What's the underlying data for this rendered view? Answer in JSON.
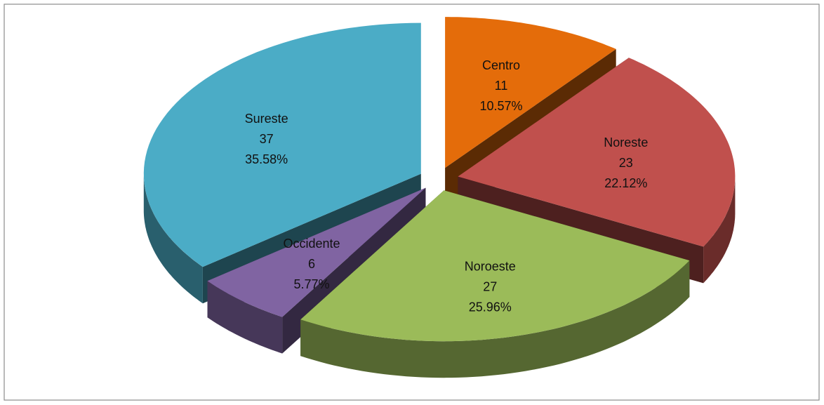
{
  "chart_data": {
    "type": "pie3d",
    "categories": [
      "Centro",
      "Noreste",
      "Noroeste",
      "Occidente",
      "Sureste"
    ],
    "values": [
      11,
      23,
      27,
      6,
      37
    ],
    "percent_labels": [
      "10.57%",
      "22.12%",
      "25.96%",
      "5.77%",
      "35.58%"
    ],
    "colors": [
      "#e46c0a",
      "#c0504d",
      "#9bbb59",
      "#8064a2",
      "#4bacc6"
    ]
  }
}
